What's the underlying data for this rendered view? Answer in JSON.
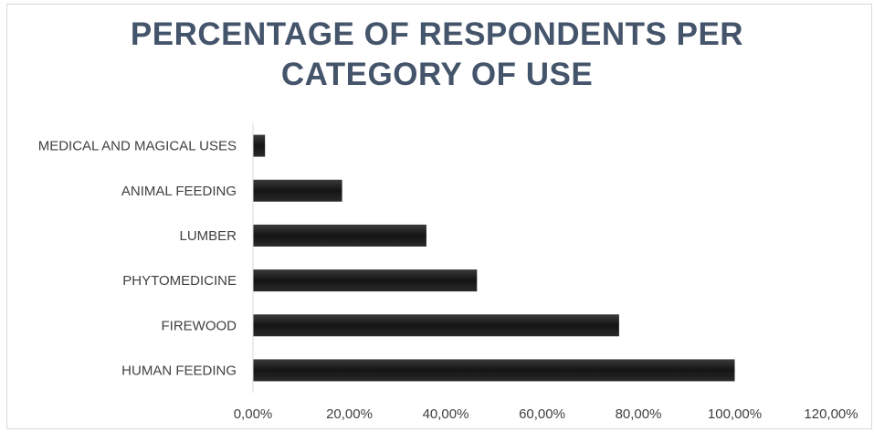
{
  "chart_data": {
    "type": "bar",
    "orientation": "horizontal",
    "title_lines": [
      "PERCENTAGE  OF RESPONDENTS PER",
      "CATEGORY OF USE"
    ],
    "categories": [
      "MEDICAL AND MAGICAL USES",
      "ANIMAL FEEDING",
      "LUMBER",
      "PHYTOMEDICINE",
      "FIREWOOD",
      "HUMAN FEEDING"
    ],
    "values": [
      2.5,
      18.5,
      36,
      46.5,
      76,
      100
    ],
    "xlim": [
      0,
      120
    ],
    "xticks": [
      0,
      20,
      40,
      60,
      80,
      100,
      120
    ],
    "xtick_labels": [
      "0,00%",
      "20,00%",
      "40,00%",
      "60,00%",
      "80,00%",
      "100,00%",
      "120,00%"
    ],
    "grid": false,
    "legend": "none",
    "colors": {
      "bar": "#1a1a1a",
      "title": "#44546a",
      "axis": "#d9d9d9",
      "text": "#404040"
    }
  }
}
